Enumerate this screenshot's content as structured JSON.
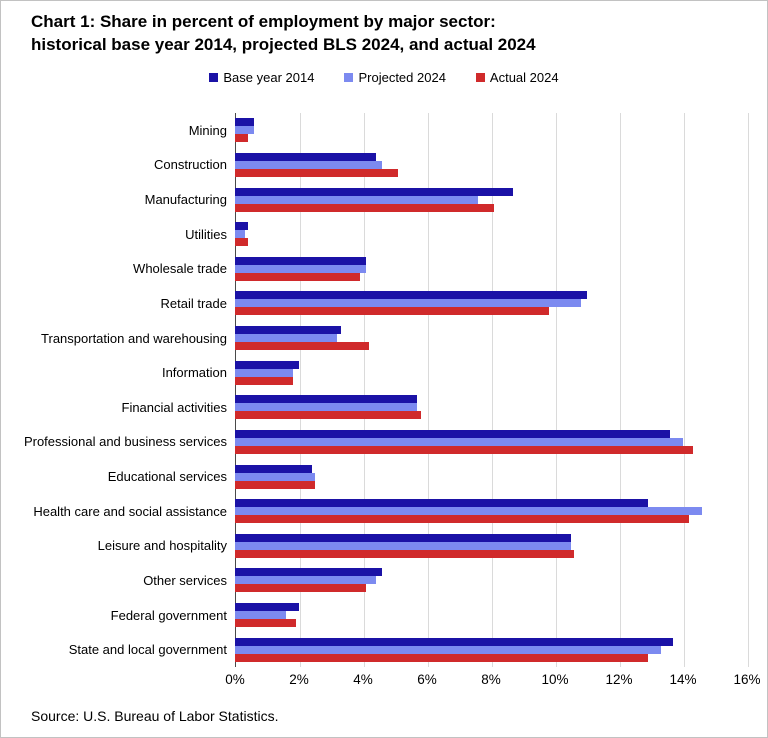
{
  "title": {
    "line1": "Chart 1: Share in percent of employment by major sector:",
    "line2": "historical base year 2014, projected BLS 2024, and actual 2024"
  },
  "source": "Source: U.S. Bureau of Labor Statistics.",
  "colors": {
    "base_year_2014": "#1b12a6",
    "projected_2024": "#7c8af0",
    "actual_2024": "#d02a2b",
    "gridline": "#dadada",
    "axis_line": "#4a4a4a",
    "page_border": "#c2c2c2"
  },
  "chart_data": {
    "type": "bar",
    "orientation": "horizontal",
    "title": "Chart 1: Share in percent of employment by major sector: historical base year 2014, projected BLS 2024, and actual 2024",
    "xlabel": "",
    "ylabel": "",
    "xlim": [
      0,
      16
    ],
    "x_tick_step": 2,
    "x_ticks": [
      "0%",
      "2%",
      "4%",
      "6%",
      "8%",
      "10%",
      "12%",
      "14%",
      "16%"
    ],
    "grid": true,
    "legend_position": "top-center",
    "categories": [
      "Mining",
      "Construction",
      "Manufacturing",
      "Utilities",
      "Wholesale trade",
      "Retail trade",
      "Transportation and warehousing",
      "Information",
      "Financial activities",
      "Professional and business services",
      "Educational services",
      "Health care and social assistance",
      "Leisure and hospitality",
      "Other services",
      "Federal government",
      "State and local government"
    ],
    "series": [
      {
        "name": "Base year 2014",
        "color": "#1b12a6",
        "values": [
          0.6,
          4.4,
          8.7,
          0.4,
          4.1,
          11.0,
          3.3,
          2.0,
          5.7,
          13.6,
          2.4,
          12.9,
          10.5,
          4.6,
          2.0,
          13.7
        ]
      },
      {
        "name": "Projected 2024",
        "color": "#7c8af0",
        "values": [
          0.6,
          4.6,
          7.6,
          0.3,
          4.1,
          10.8,
          3.2,
          1.8,
          5.7,
          14.0,
          2.5,
          14.6,
          10.5,
          4.4,
          1.6,
          13.3
        ]
      },
      {
        "name": "Actual 2024",
        "color": "#d02a2b",
        "values": [
          0.4,
          5.1,
          8.1,
          0.4,
          3.9,
          9.8,
          4.2,
          1.8,
          5.8,
          14.3,
          2.5,
          14.2,
          10.6,
          4.1,
          1.9,
          12.9
        ]
      }
    ]
  }
}
